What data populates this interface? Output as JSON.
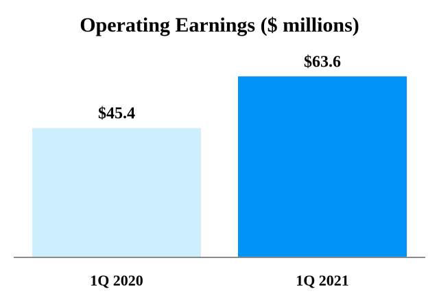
{
  "chart_data": {
    "type": "bar",
    "title": "Operating Earnings ($ millions)",
    "xlabel": "",
    "ylabel": "",
    "categories": [
      "1Q 2020",
      "1Q 2021"
    ],
    "values": [
      45.4,
      63.6
    ],
    "value_labels": [
      "$45.4",
      "$63.6"
    ],
    "bar_colors": [
      "#cdeefd",
      "#0093f5"
    ],
    "axis_color": "#8a8a8a",
    "ylim": [
      0,
      75
    ],
    "grid": false,
    "legend": "none"
  }
}
